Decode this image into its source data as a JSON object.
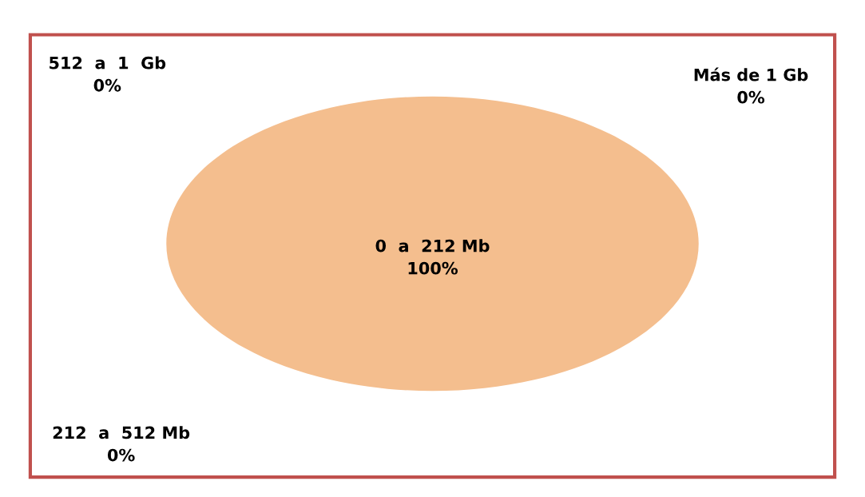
{
  "chart_data": {
    "type": "pie",
    "categories": [
      "0  a  212 Mb",
      "212  a  512 Mb",
      "512  a  1  Gb",
      "Más de 1 Gb"
    ],
    "values": [
      100,
      0,
      0,
      0
    ],
    "value_labels": [
      "100%",
      "0%",
      "0%",
      "0%"
    ],
    "colors": [
      "#f4be8e",
      "#4f81bd",
      "#9bbb59",
      "#8064a2"
    ],
    "legend": false
  }
}
